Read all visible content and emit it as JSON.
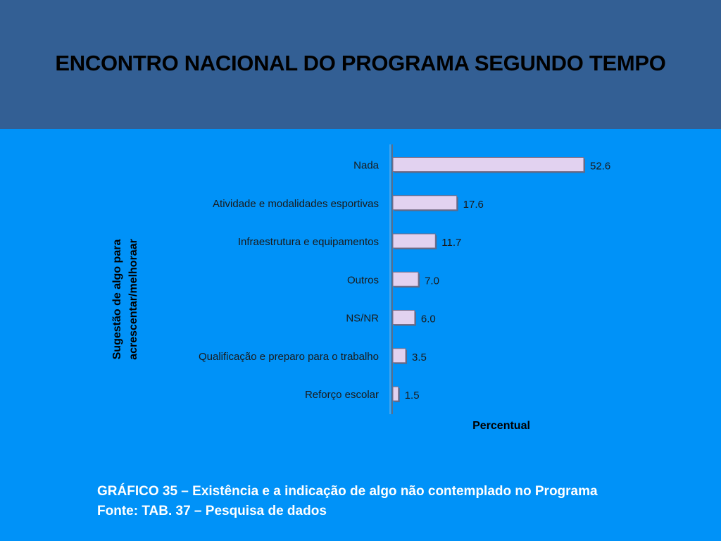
{
  "slide": {
    "title": "ENCONTRO NACIONAL DO PROGRAMA SEGUNDO TEMPO",
    "caption_line1": "GRÁFICO 35 – Existência e a indicação de algo não contemplado no Programa",
    "caption_line2": "Fonte: TAB. 37 – Pesquisa de dados"
  },
  "colors": {
    "background": "#0092f8",
    "header": "#335f94",
    "bar_fill": "#e2d2f0",
    "bar_stroke": "#7a6f8a"
  },
  "chart_data": {
    "type": "bar",
    "orientation": "horizontal",
    "title": "",
    "categories": [
      "Nada",
      "Atividade e modalidades esportivas",
      "Infraestrutura e equipamentos",
      "Outros",
      "NS/NR",
      "Qualificação e preparo para o trabalho",
      "Reforço escolar"
    ],
    "values": [
      52.6,
      17.6,
      11.7,
      7.0,
      6.0,
      3.5,
      1.5
    ],
    "value_labels": [
      "52.6",
      "17.6",
      "11.7",
      "7.0",
      "6.0",
      "3.5",
      "1.5"
    ],
    "xlabel": "Percentual",
    "ylabel_line1": "Sugestão de algo para",
    "ylabel_line2": "acrescentar/melhoraar",
    "xlim": [
      0,
      52.6
    ],
    "grid": false,
    "legend": "none"
  }
}
